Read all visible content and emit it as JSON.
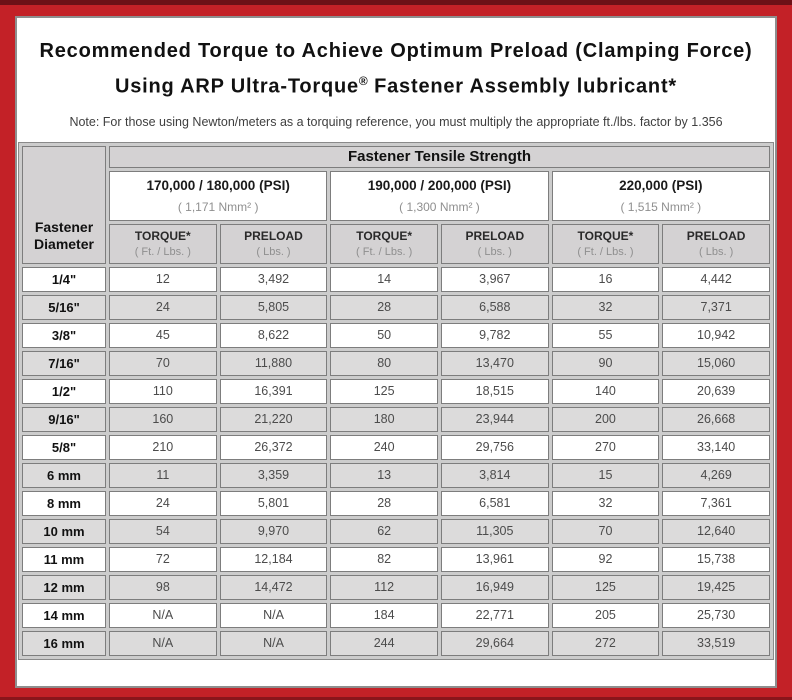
{
  "page": {
    "title_line1": "Recommended Torque to Achieve Optimum Preload (Clamping Force)",
    "title_line2_pre": "Using ARP Ultra-Torque",
    "title_line2_reg": "®",
    "title_line2_post": " Fastener Assembly lubricant*",
    "note": "Note: For those using Newton/meters as a torquing reference, you must multiply the appropriate ft./lbs. factor by 1.356"
  },
  "colors": {
    "frame_red": "#c32127",
    "frame_dark_maroon": "#6d1117",
    "header_gray": "#d4d2d3",
    "row_shade_gray": "#dcdbdb",
    "cell_border_gray": "#7d7d7d"
  },
  "table": {
    "corner_header": "Fastener Diameter",
    "tensile_header": "Fastener Tensile Strength",
    "psi_groups": [
      {
        "psi": "170,000 / 180,000 (PSI)",
        "nmm": "( 1,171 Nmm² )"
      },
      {
        "psi": "190,000 / 200,000 (PSI)",
        "nmm": "( 1,300 Nmm² )"
      },
      {
        "psi": "220,000 (PSI)",
        "nmm": "( 1,515 Nmm² )"
      }
    ],
    "sub_headers": [
      {
        "label": "TORQUE*",
        "unit": "( Ft. / Lbs. )"
      },
      {
        "label": "PRELOAD",
        "unit": "( Lbs. )"
      }
    ],
    "rows": [
      {
        "diameter": "1/4\"",
        "values": [
          "12",
          "3,492",
          "14",
          "3,967",
          "16",
          "4,442"
        ]
      },
      {
        "diameter": "5/16\"",
        "values": [
          "24",
          "5,805",
          "28",
          "6,588",
          "32",
          "7,371"
        ]
      },
      {
        "diameter": "3/8\"",
        "values": [
          "45",
          "8,622",
          "50",
          "9,782",
          "55",
          "10,942"
        ]
      },
      {
        "diameter": "7/16\"",
        "values": [
          "70",
          "11,880",
          "80",
          "13,470",
          "90",
          "15,060"
        ]
      },
      {
        "diameter": "1/2\"",
        "values": [
          "110",
          "16,391",
          "125",
          "18,515",
          "140",
          "20,639"
        ]
      },
      {
        "diameter": "9/16\"",
        "values": [
          "160",
          "21,220",
          "180",
          "23,944",
          "200",
          "26,668"
        ]
      },
      {
        "diameter": "5/8\"",
        "values": [
          "210",
          "26,372",
          "240",
          "29,756",
          "270",
          "33,140"
        ]
      },
      {
        "diameter": "6 mm",
        "values": [
          "11",
          "3,359",
          "13",
          "3,814",
          "15",
          "4,269"
        ]
      },
      {
        "diameter": "8 mm",
        "values": [
          "24",
          "5,801",
          "28",
          "6,581",
          "32",
          "7,361"
        ]
      },
      {
        "diameter": "10 mm",
        "values": [
          "54",
          "9,970",
          "62",
          "11,305",
          "70",
          "12,640"
        ]
      },
      {
        "diameter": "11 mm",
        "values": [
          "72",
          "12,184",
          "82",
          "13,961",
          "92",
          "15,738"
        ]
      },
      {
        "diameter": "12 mm",
        "values": [
          "98",
          "14,472",
          "112",
          "16,949",
          "125",
          "19,425"
        ]
      },
      {
        "diameter": "14 mm",
        "values": [
          "N/A",
          "N/A",
          "184",
          "22,771",
          "205",
          "25,730"
        ]
      },
      {
        "diameter": "16 mm",
        "values": [
          "N/A",
          "N/A",
          "244",
          "29,664",
          "272",
          "33,519"
        ]
      }
    ]
  }
}
